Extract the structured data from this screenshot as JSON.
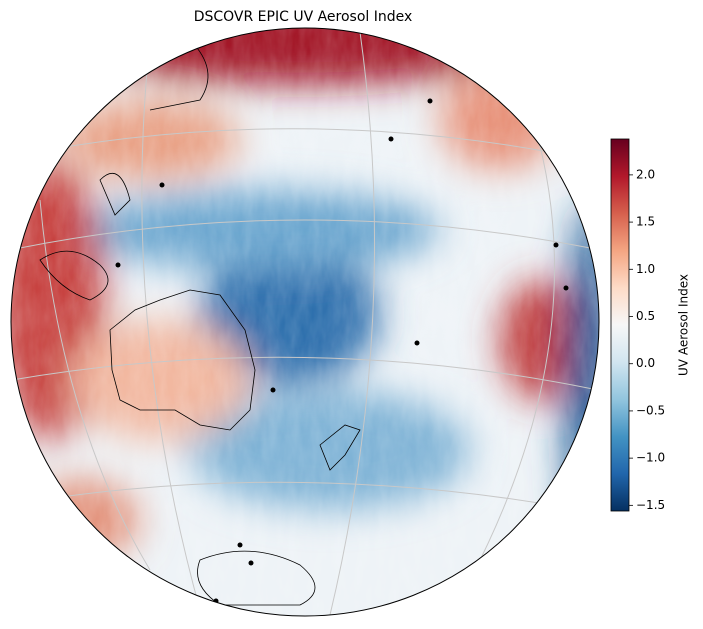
{
  "chart_data": {
    "type": "map",
    "title": "DSCOVR EPIC UV Aerosol Index",
    "colorbar": {
      "label": "UV Aerosol Index",
      "colormap": "RdBu_r",
      "lim": [
        -1.56,
        2.38
      ],
      "ticks": [
        {
          "value": -1.5,
          "label": "−1.5"
        },
        {
          "value": -1,
          "label": "−1.0"
        },
        {
          "value": -0.5,
          "label": "−0.5"
        },
        {
          "value": 0,
          "label": "0.0"
        },
        {
          "value": 0.5,
          "label": "0.5"
        },
        {
          "value": 1,
          "label": "1.0"
        },
        {
          "value": 1.5,
          "label": "1.5"
        },
        {
          "value": 2,
          "label": "2.0"
        }
      ]
    }
  }
}
